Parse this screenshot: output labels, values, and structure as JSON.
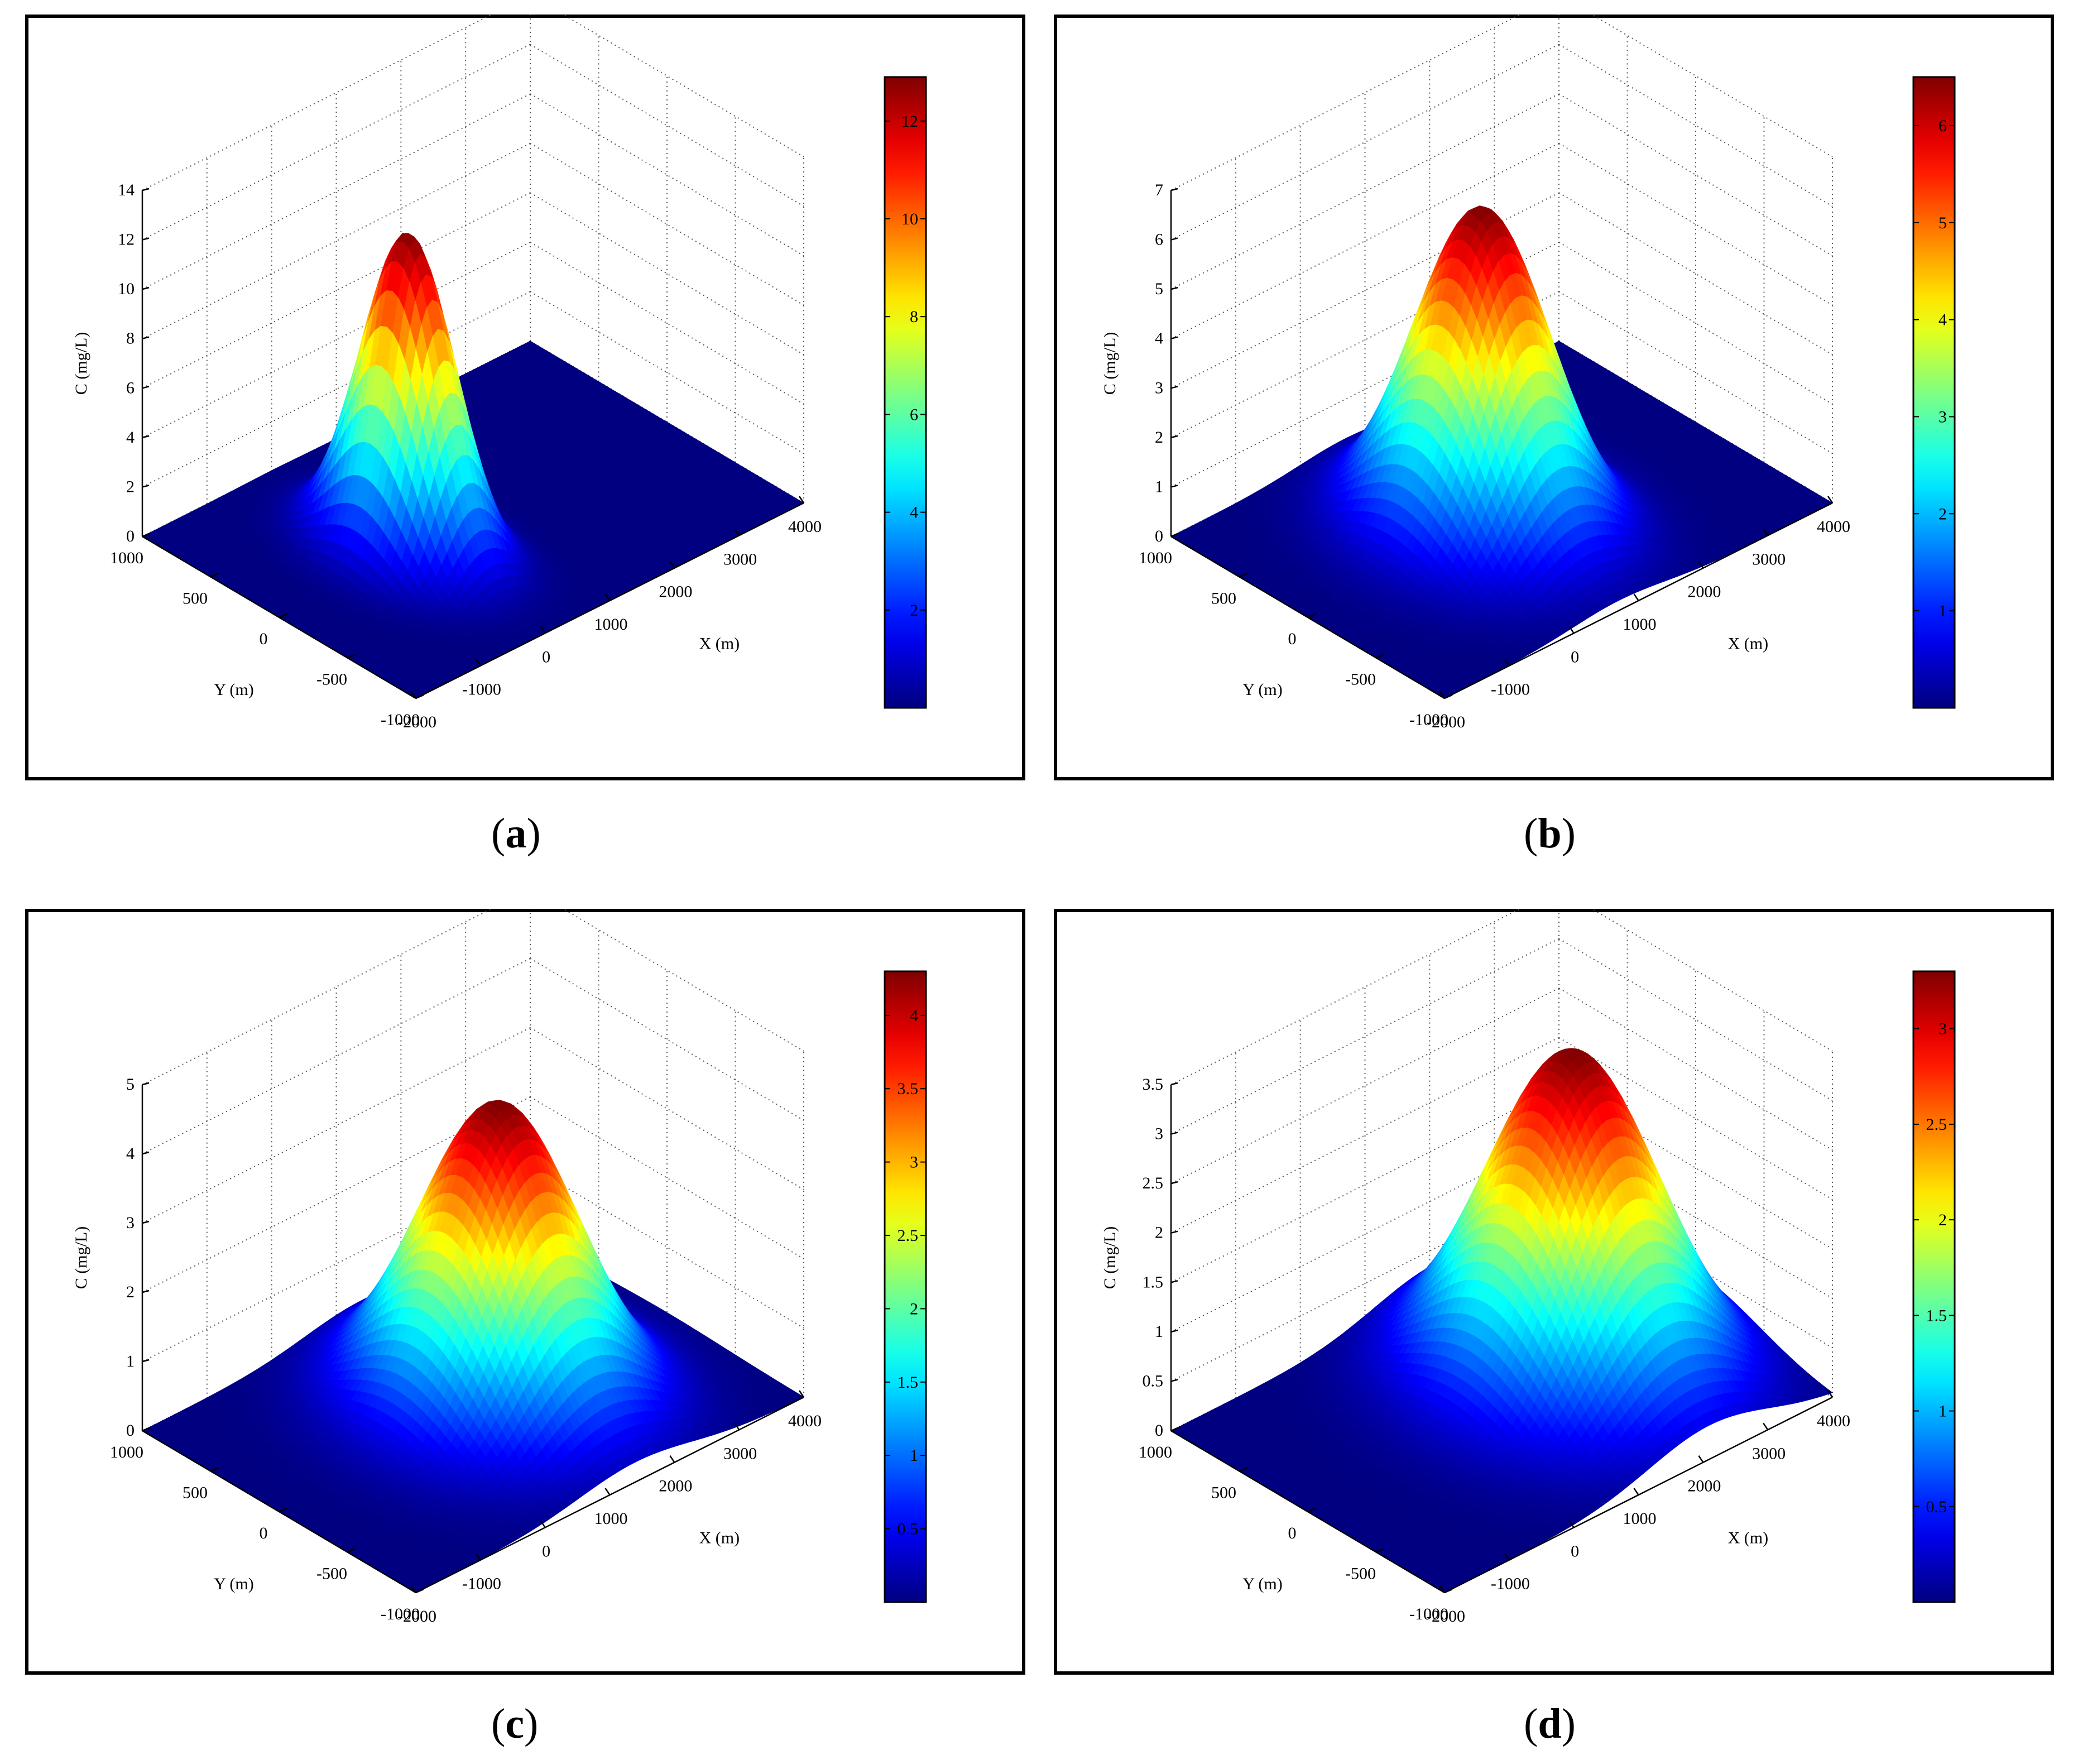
{
  "figure": {
    "panels": [
      {
        "label_open": "(",
        "label_letter": "a",
        "label_close": ")"
      },
      {
        "label_open": "(",
        "label_letter": "b",
        "label_close": ")"
      },
      {
        "label_open": "(",
        "label_letter": "c",
        "label_close": ")"
      },
      {
        "label_open": "(",
        "label_letter": "d",
        "label_close": ")"
      }
    ]
  },
  "chart_data": [
    {
      "type": "surface3d",
      "panel": "a",
      "title": "",
      "xlabel": "X (m)",
      "ylabel": "Y (m)",
      "zlabel": "C (mg/L)",
      "xlim": [
        -2000,
        4000
      ],
      "ylim": [
        -1000,
        1000
      ],
      "zlim": [
        0,
        14
      ],
      "xticks": [
        "-2000",
        "-1000",
        "0",
        "1000",
        "2000",
        "3000",
        "4000"
      ],
      "yticks": [
        "-1000",
        "-500",
        "0",
        "500",
        "1000"
      ],
      "zticks": [
        "0",
        "2",
        "4",
        "6",
        "8",
        "10",
        "12",
        "14"
      ],
      "colorbar": {
        "min": 0,
        "max": 12.9,
        "ticks": [
          "2",
          "4",
          "6",
          "8",
          "10",
          "12"
        ]
      },
      "peak": {
        "x": 0,
        "y": 0,
        "c": 12.9
      },
      "spread_x": 430,
      "spread_y": 290,
      "colormap": "jet",
      "grid": true
    },
    {
      "type": "surface3d",
      "panel": "b",
      "title": "",
      "xlabel": "X (m)",
      "ylabel": "Y (m)",
      "zlabel": "C (mg/L)",
      "xlim": [
        -2000,
        4000
      ],
      "ylim": [
        -1000,
        1000
      ],
      "zlim": [
        0,
        7
      ],
      "xticks": [
        "-2000",
        "-1000",
        "0",
        "1000",
        "2000",
        "3000",
        "4000"
      ],
      "yticks": [
        "-1000",
        "-500",
        "0",
        "500",
        "1000"
      ],
      "zticks": [
        "0",
        "1",
        "2",
        "3",
        "4",
        "5",
        "6",
        "7"
      ],
      "colorbar": {
        "min": 0,
        "max": 6.5,
        "ticks": [
          "1",
          "2",
          "3",
          "4",
          "5",
          "6"
        ]
      },
      "peak": {
        "x": 700,
        "y": 0,
        "c": 6.5
      },
      "spread_x": 720,
      "spread_y": 380,
      "colormap": "jet",
      "grid": true
    },
    {
      "type": "surface3d",
      "panel": "c",
      "title": "",
      "xlabel": "X (m)",
      "ylabel": "Y (m)",
      "zlabel": "C (mg/L)",
      "xlim": [
        -2000,
        4000
      ],
      "ylim": [
        -1000,
        1000
      ],
      "zlim": [
        0,
        5
      ],
      "xticks": [
        "-2000",
        "-1000",
        "0",
        "1000",
        "2000",
        "3000",
        "4000"
      ],
      "yticks": [
        "-1000",
        "-500",
        "0",
        "500",
        "1000"
      ],
      "zticks": [
        "0",
        "1",
        "2",
        "3",
        "4",
        "5"
      ],
      "colorbar": {
        "min": 0,
        "max": 4.3,
        "ticks": [
          "0.5",
          "1",
          "1.5",
          "2",
          "2.5",
          "3",
          "3.5",
          "4"
        ]
      },
      "peak": {
        "x": 1400,
        "y": 0,
        "c": 4.3
      },
      "spread_x": 880,
      "spread_y": 430,
      "colormap": "jet",
      "grid": true
    },
    {
      "type": "surface3d",
      "panel": "d",
      "title": "",
      "xlabel": "X (m)",
      "ylabel": "Y (m)",
      "zlabel": "C (mg/L)",
      "xlim": [
        -2000,
        4000
      ],
      "ylim": [
        -1000,
        1000
      ],
      "zlim": [
        0,
        3.5
      ],
      "xticks": [
        "-2000",
        "-1000",
        "0",
        "1000",
        "2000",
        "3000",
        "4000"
      ],
      "yticks": [
        "-1000",
        "-500",
        "0",
        "500",
        "1000"
      ],
      "zticks": [
        "0",
        "0.5",
        "1",
        "1.5",
        "2",
        "2.5",
        "3",
        "3.5"
      ],
      "colorbar": {
        "min": 0,
        "max": 3.3,
        "ticks": [
          "0.5",
          "1",
          "1.5",
          "2",
          "2.5",
          "3"
        ]
      },
      "peak": {
        "x": 2100,
        "y": 0,
        "c": 3.3
      },
      "spread_x": 950,
      "spread_y": 470,
      "colormap": "jet",
      "grid": true
    }
  ]
}
